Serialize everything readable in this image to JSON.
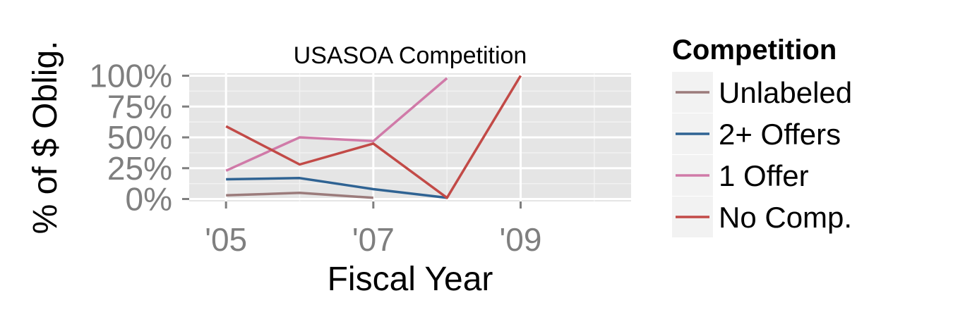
{
  "chart_data": {
    "type": "line",
    "title": "USASOA Competition",
    "xlabel": "Fiscal Year",
    "ylabel": "% of $ Oblig.",
    "x_ticks": [
      {
        "value": 2005,
        "label": "'05"
      },
      {
        "value": 2007,
        "label": "'07"
      },
      {
        "value": 2009,
        "label": "'09"
      }
    ],
    "y_ticks": [
      {
        "value": 0,
        "label": "0%"
      },
      {
        "value": 0.25,
        "label": "25%"
      },
      {
        "value": 0.5,
        "label": "50%"
      },
      {
        "value": 0.75,
        "label": "75%"
      },
      {
        "value": 1.0,
        "label": "100%"
      }
    ],
    "xlim": [
      2004.5,
      2010.5
    ],
    "ylim": [
      -0.02,
      1.02
    ],
    "grid": true,
    "legend": {
      "title": "Competition",
      "placement": "right"
    },
    "series": [
      {
        "name": "Unlabeled",
        "color": "#9b7b7b",
        "x": [
          2005,
          2006,
          2007
        ],
        "values": [
          0.03,
          0.05,
          0.01
        ]
      },
      {
        "name": "2+ Offers",
        "color": "#2f6393",
        "x": [
          2005,
          2006,
          2007,
          2008
        ],
        "values": [
          0.16,
          0.17,
          0.08,
          0.01
        ]
      },
      {
        "name": "1 Offer",
        "color": "#d07aa8",
        "x": [
          2005,
          2006,
          2007,
          2008
        ],
        "values": [
          0.23,
          0.5,
          0.47,
          0.98
        ]
      },
      {
        "name": "No Comp.",
        "color": "#c24a47",
        "x": [
          2005,
          2006,
          2007,
          2008,
          2009
        ],
        "values": [
          0.59,
          0.28,
          0.45,
          0.01,
          1.0
        ]
      }
    ]
  }
}
